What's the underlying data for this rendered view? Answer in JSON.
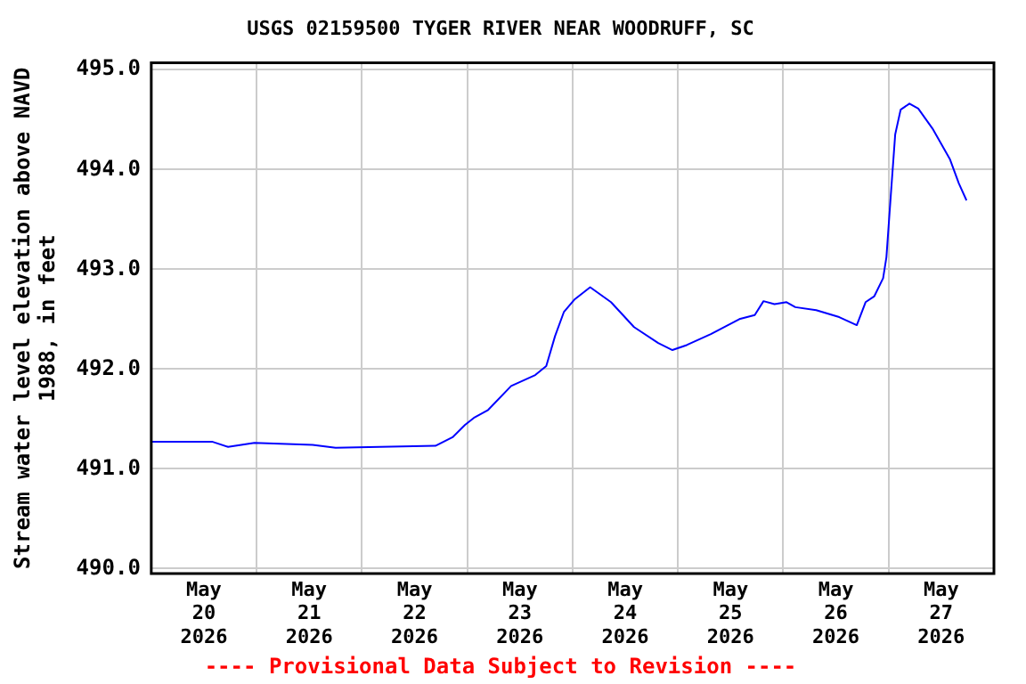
{
  "chart_data": {
    "type": "line",
    "title": "USGS 02159500 TYGER RIVER NEAR WOODRUFF, SC",
    "ylabel": "Stream water level elevation above NAVD 1988, in feet",
    "annotations": [
      "---- Provisional Data Subject to Revision ----"
    ],
    "x": [
      "2026-05-20T00:00",
      "2026-05-20T14:00",
      "2026-05-20T17:30",
      "2026-05-20T23:30",
      "2026-05-21T12:45",
      "2026-05-21T18:00",
      "2026-05-22T16:45",
      "2026-05-22T20:45",
      "2026-05-22T23:30",
      "2026-05-23T01:30",
      "2026-05-23T04:45",
      "2026-05-23T10:00",
      "2026-05-23T15:30",
      "2026-05-23T18:00",
      "2026-05-23T20:00",
      "2026-05-23T22:00",
      "2026-05-24T00:30",
      "2026-05-24T04:00",
      "2026-05-24T08:45",
      "2026-05-24T14:00",
      "2026-05-24T19:30",
      "2026-05-24T22:45",
      "2026-05-25T02:00",
      "2026-05-25T07:30",
      "2026-05-25T14:00",
      "2026-05-25T17:30",
      "2026-05-25T19:30",
      "2026-05-25T22:00",
      "2026-05-26T00:45",
      "2026-05-26T02:45",
      "2026-05-26T07:30",
      "2026-05-26T12:45",
      "2026-05-26T16:45",
      "2026-05-26T18:45",
      "2026-05-26T20:45",
      "2026-05-26T22:45",
      "2026-05-26T23:30",
      "2026-05-27T00:30",
      "2026-05-27T01:30",
      "2026-05-27T02:45",
      "2026-05-27T04:45",
      "2026-05-27T06:45",
      "2026-05-27T10:00",
      "2026-05-27T14:00",
      "2026-05-27T16:00",
      "2026-05-27T17:45"
    ],
    "series": [
      {
        "color": "#0000ff",
        "values": [
          491.27,
          491.27,
          491.22,
          491.26,
          491.24,
          491.21,
          491.23,
          491.32,
          491.44,
          491.51,
          491.59,
          491.83,
          491.94,
          492.03,
          492.33,
          492.57,
          492.7,
          492.82,
          492.67,
          492.42,
          492.26,
          492.19,
          492.24,
          492.35,
          492.5,
          492.54,
          492.68,
          492.65,
          492.67,
          492.62,
          492.59,
          492.52,
          492.44,
          492.67,
          492.73,
          492.91,
          493.12,
          493.74,
          494.35,
          494.6,
          494.66,
          494.61,
          494.41,
          494.1,
          493.86,
          493.69
        ]
      }
    ],
    "xlim": [
      "2026-05-20T00:00",
      "2026-05-28T00:00"
    ],
    "xticks": [
      {
        "value": "2026-05-20T12:00",
        "label": "May\n20\n2026"
      },
      {
        "value": "2026-05-21T00:00",
        "label": null
      },
      {
        "value": "2026-05-21T12:00",
        "label": "May\n21\n2026"
      },
      {
        "value": "2026-05-22T00:00",
        "label": null
      },
      {
        "value": "2026-05-22T12:00",
        "label": "May\n22\n2026"
      },
      {
        "value": "2026-05-23T00:00",
        "label": null
      },
      {
        "value": "2026-05-23T12:00",
        "label": "May\n23\n2026"
      },
      {
        "value": "2026-05-24T00:00",
        "label": null
      },
      {
        "value": "2026-05-24T12:00",
        "label": "May\n24\n2026"
      },
      {
        "value": "2026-05-25T00:00",
        "label": null
      },
      {
        "value": "2026-05-25T12:00",
        "label": "May\n25\n2026"
      },
      {
        "value": "2026-05-26T00:00",
        "label": null
      },
      {
        "value": "2026-05-26T12:00",
        "label": "May\n26\n2026"
      },
      {
        "value": "2026-05-27T00:00",
        "label": null
      },
      {
        "value": "2026-05-27T12:00",
        "label": "May\n27\n2026"
      }
    ],
    "ylim": [
      489.95,
      495.07
    ],
    "yticks": [
      {
        "value": 490,
        "label": "490.0"
      },
      {
        "value": 491,
        "label": "491.0"
      },
      {
        "value": 492,
        "label": "492.0"
      },
      {
        "value": 493,
        "label": "493.0"
      },
      {
        "value": 494,
        "label": "494.0"
      },
      {
        "value": 495,
        "label": "495.0"
      }
    ],
    "grid": true,
    "legend": false,
    "marker": "none",
    "line_style": "solid"
  }
}
